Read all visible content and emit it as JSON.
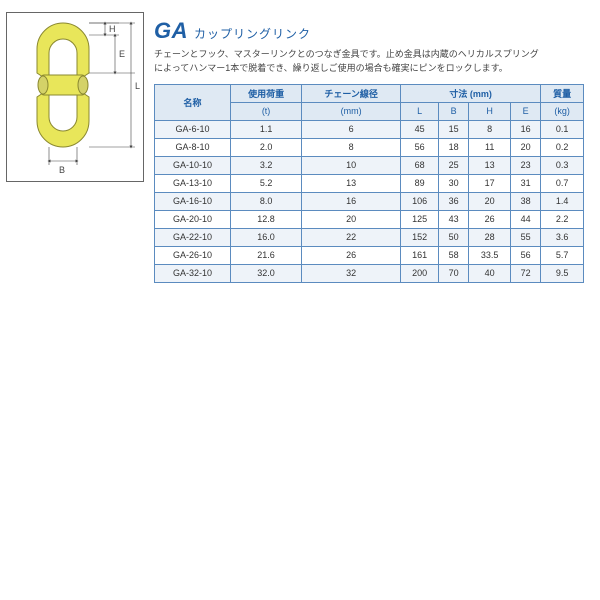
{
  "title_code": "GA",
  "title_jp": "カップリングリンク",
  "desc_l1": "チェーンとフック、マスターリンクとのつなぎ金具です。止め金具は内蔵のヘリカルスプリング",
  "desc_l2": "によってハンマー1本で脱着でき、繰り返しご使用の場合も確実にピンをロックします。",
  "header": {
    "name": "名称",
    "wll_top": "使用荷重",
    "wll_unit": "(t)",
    "chain_top": "チェーン線径",
    "chain_unit": "(mm)",
    "dim_top": "寸法 (mm)",
    "L": "L",
    "B": "B",
    "H": "H",
    "E": "E",
    "mass_top": "質量",
    "mass_unit": "(kg)"
  },
  "diagram_labels": {
    "H": "H",
    "E": "E",
    "L": "L",
    "B": "B"
  },
  "rows": [
    {
      "name": "GA-6-10",
      "wll": "1.1",
      "chain": "6",
      "L": "45",
      "B": "15",
      "H": "8",
      "E": "16",
      "mass": "0.1"
    },
    {
      "name": "GA-8-10",
      "wll": "2.0",
      "chain": "8",
      "L": "56",
      "B": "18",
      "H": "11",
      "E": "20",
      "mass": "0.2"
    },
    {
      "name": "GA-10-10",
      "wll": "3.2",
      "chain": "10",
      "L": "68",
      "B": "25",
      "H": "13",
      "E": "23",
      "mass": "0.3"
    },
    {
      "name": "GA-13-10",
      "wll": "5.2",
      "chain": "13",
      "L": "89",
      "B": "30",
      "H": "17",
      "E": "31",
      "mass": "0.7"
    },
    {
      "name": "GA-16-10",
      "wll": "8.0",
      "chain": "16",
      "L": "106",
      "B": "36",
      "H": "20",
      "E": "38",
      "mass": "1.4"
    },
    {
      "name": "GA-20-10",
      "wll": "12.8",
      "chain": "20",
      "L": "125",
      "B": "43",
      "H": "26",
      "E": "44",
      "mass": "2.2"
    },
    {
      "name": "GA-22-10",
      "wll": "16.0",
      "chain": "22",
      "L": "152",
      "B": "50",
      "H": "28",
      "E": "55",
      "mass": "3.6"
    },
    {
      "name": "GA-26-10",
      "wll": "21.6",
      "chain": "26",
      "L": "161",
      "B": "58",
      "H": "33.5",
      "E": "56",
      "mass": "5.7"
    },
    {
      "name": "GA-32-10",
      "wll": "32.0",
      "chain": "32",
      "L": "200",
      "B": "70",
      "H": "40",
      "E": "72",
      "mass": "9.5"
    }
  ],
  "style": {
    "brand_color": "#1f5fa5",
    "header_bg": "#dfe9f3",
    "alt_bg": "#eef3f9",
    "part_fill": "#e8e65a",
    "part_stroke": "#8a8830",
    "dim_color": "#444"
  }
}
